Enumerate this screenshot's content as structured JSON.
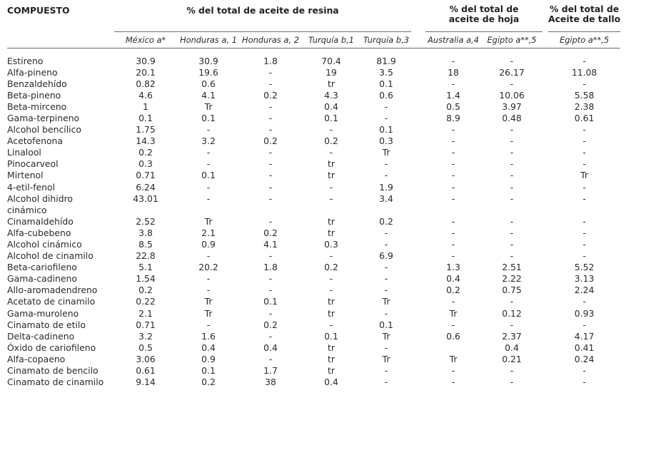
{
  "header": {
    "compuesto": "COMPUESTO",
    "group_resina": "% del total de aceite de resina",
    "group_hoja_line1": "% del total de",
    "group_hoja_line2": "aceite de hoja",
    "group_tallo_line1": "% del total de",
    "group_tallo_line2": "Aceite de tallo"
  },
  "columns": [
    "México a*",
    "Honduras a, 1",
    "Honduras a, 2",
    "Turquía b,1",
    "Turquía b,3",
    "Australia a,4",
    "Egipto a**,5",
    "Egipto a**,5"
  ],
  "rows": [
    {
      "name": "Estireno",
      "values": [
        "30.9",
        "30.9",
        "1.8",
        "70.4",
        "81.9",
        "-",
        "-",
        "-"
      ]
    },
    {
      "name": "Alfa-pineno",
      "values": [
        "20.1",
        "19.6",
        "-",
        "19",
        "3.5",
        "18",
        "26.17",
        "11.08"
      ]
    },
    {
      "name": "Benzaldehído",
      "values": [
        "0.82",
        "0.6",
        "-",
        "tr",
        "0.1",
        "-",
        "-",
        "-"
      ]
    },
    {
      "name": "Beta-pineno",
      "values": [
        "4.6",
        "4.1",
        "0.2",
        "4.3",
        "0.6",
        "1.4",
        "10.06",
        "5.58"
      ]
    },
    {
      "name": "Beta-mirceno",
      "values": [
        "1",
        "Tr",
        "-",
        "0.4",
        "-",
        "0.5",
        "3.97",
        "2.38"
      ]
    },
    {
      "name": "Gama-terpineno",
      "values": [
        "0.1",
        "0.1",
        "-",
        "0.1",
        "-",
        "8.9",
        "0.48",
        "0.61"
      ]
    },
    {
      "name": "Alcohol bencílico",
      "values": [
        "1.75",
        "-",
        "-",
        "-",
        "0.1",
        "-",
        "-",
        "-"
      ]
    },
    {
      "name": "Acetofenona",
      "values": [
        "14.3",
        "3.2",
        "0.2",
        "0.2",
        "0.3",
        "-",
        "-",
        "-"
      ]
    },
    {
      "name": "Linalool",
      "values": [
        "0.2",
        "-",
        "-",
        "-",
        "Tr",
        "-",
        "-",
        "-"
      ]
    },
    {
      "name": "Pinocarveol",
      "values": [
        "0.3",
        "-",
        "-",
        "tr",
        "-",
        "-",
        "-",
        "-"
      ]
    },
    {
      "name": "Mirtenol",
      "values": [
        "0.71",
        "0.1",
        "-",
        "tr",
        "-",
        "-",
        "-",
        "Tr"
      ]
    },
    {
      "name": "4-etil-fenol",
      "values": [
        "6.24",
        "-",
        "-",
        "-",
        "1.9",
        "-",
        "-",
        "-"
      ]
    },
    {
      "name": "Alcohol dihidro cinámico",
      "values": [
        "43.01",
        "-",
        "-",
        "-",
        "3.4",
        "-",
        "-",
        "-"
      ]
    },
    {
      "name": "Cinamaldehído",
      "values": [
        "2.52",
        "Tr",
        "-",
        "tr",
        "0.2",
        "-",
        "-",
        "-"
      ]
    },
    {
      "name": "Alfa-cubebeno",
      "values": [
        "3.8",
        "2.1",
        "0.2",
        "tr",
        "-",
        "-",
        "-",
        "-"
      ]
    },
    {
      "name": "Alcohol cinámico",
      "values": [
        "8.5",
        "0.9",
        "4.1",
        "0.3",
        "-",
        "-",
        "-",
        "-"
      ]
    },
    {
      "name": "Alcohol de cinamilo",
      "values": [
        "22.8",
        "-",
        "-",
        "-",
        "6.9",
        "-",
        "-",
        "-"
      ]
    },
    {
      "name": "Beta-cariofileno",
      "values": [
        "5.1",
        "20.2",
        "1.8",
        "0.2",
        "-",
        "1.3",
        "2.51",
        "5.52"
      ]
    },
    {
      "name": "Gama-cadineno",
      "values": [
        "1.54",
        "-",
        "-",
        "-",
        "-",
        "0.4",
        "2.22",
        "3.13"
      ]
    },
    {
      "name": "Allo-aromadendreno",
      "values": [
        "0.2",
        "-",
        "-",
        "-",
        "-",
        "0.2",
        "0.75",
        "2.24"
      ]
    },
    {
      "name": "Acetato de cinamilo",
      "values": [
        "0.22",
        "Tr",
        "0.1",
        "tr",
        "Tr",
        "-",
        "-",
        "-"
      ]
    },
    {
      "name": "Gama-muroleno",
      "values": [
        "2.1",
        "Tr",
        "-",
        "tr",
        "-",
        "Tr",
        "0.12",
        "0.93"
      ]
    },
    {
      "name": "Cinamato de etilo",
      "values": [
        "0.71",
        "-",
        "0.2",
        "-",
        "0.1",
        "-",
        "-",
        "-"
      ]
    },
    {
      "name": "Delta-cadineno",
      "values": [
        "3.2",
        "1.6",
        "-",
        "0.1",
        "Tr",
        "0.6",
        "2.37",
        "4.17"
      ]
    },
    {
      "name": "Óxido de cariofileno",
      "values": [
        "0.5",
        "0.4",
        "0.4",
        "tr",
        "-",
        "",
        "0.4",
        "0.41"
      ]
    },
    {
      "name": "Alfa-copaeno",
      "values": [
        "3.06",
        "0.9",
        "-",
        "tr",
        "Tr",
        "Tr",
        "0.21",
        "0.24"
      ]
    },
    {
      "name": "Cinamato de bencilo",
      "values": [
        "0.61",
        "0.1",
        "1.7",
        "tr",
        "-",
        "-",
        "-",
        "-"
      ]
    },
    {
      "name": "Cinamato de cinamilo",
      "values": [
        "9.14",
        "0.2",
        "38",
        "0.4",
        "-",
        "-",
        "-",
        "-"
      ]
    }
  ]
}
